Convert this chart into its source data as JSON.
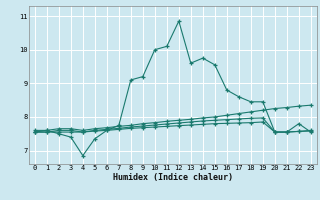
{
  "title": "",
  "xlabel": "Humidex (Indice chaleur)",
  "bg_color": "#cde8f0",
  "grid_color": "#ffffff",
  "line_color": "#1a7a6e",
  "xmin": -0.5,
  "xmax": 23.5,
  "ymin": 6.6,
  "ymax": 11.3,
  "yticks": [
    7,
    8,
    9,
    10,
    11
  ],
  "xticks": [
    0,
    1,
    2,
    3,
    4,
    5,
    6,
    7,
    8,
    9,
    10,
    11,
    12,
    13,
    14,
    15,
    16,
    17,
    18,
    19,
    20,
    21,
    22,
    23
  ],
  "line1_x": [
    0,
    1,
    2,
    3,
    4,
    5,
    6,
    7,
    8,
    9,
    10,
    11,
    12,
    13,
    14,
    15,
    16,
    17,
    18,
    19,
    20,
    21,
    22,
    23
  ],
  "line1_y": [
    7.6,
    7.6,
    7.5,
    7.4,
    6.85,
    7.35,
    7.6,
    7.75,
    9.1,
    9.2,
    10.0,
    10.1,
    10.85,
    9.6,
    9.75,
    9.55,
    8.8,
    8.6,
    8.45,
    8.45,
    7.55,
    7.55,
    7.8,
    7.55
  ],
  "line2_x": [
    0,
    1,
    2,
    3,
    4,
    5,
    6,
    7,
    8,
    9,
    10,
    11,
    12,
    13,
    14,
    15,
    16,
    17,
    18,
    19,
    20,
    21,
    22,
    23
  ],
  "line2_y": [
    7.55,
    7.6,
    7.65,
    7.65,
    7.6,
    7.65,
    7.68,
    7.72,
    7.75,
    7.8,
    7.83,
    7.87,
    7.9,
    7.93,
    7.97,
    8.0,
    8.05,
    8.1,
    8.15,
    8.2,
    8.25,
    8.28,
    8.32,
    8.35
  ],
  "line3_x": [
    0,
    1,
    2,
    3,
    4,
    5,
    6,
    7,
    8,
    9,
    10,
    11,
    12,
    13,
    14,
    15,
    16,
    17,
    18,
    19,
    20,
    21,
    22,
    23
  ],
  "line3_y": [
    7.55,
    7.55,
    7.6,
    7.6,
    7.55,
    7.6,
    7.63,
    7.66,
    7.7,
    7.73,
    7.76,
    7.79,
    7.82,
    7.85,
    7.88,
    7.9,
    7.92,
    7.94,
    7.96,
    7.97,
    7.55,
    7.55,
    7.57,
    7.6
  ],
  "line4_x": [
    0,
    1,
    2,
    3,
    4,
    5,
    6,
    7,
    8,
    9,
    10,
    11,
    12,
    13,
    14,
    15,
    16,
    17,
    18,
    19,
    20,
    21,
    22,
    23
  ],
  "line4_y": [
    7.55,
    7.55,
    7.55,
    7.55,
    7.55,
    7.58,
    7.6,
    7.63,
    7.66,
    7.68,
    7.7,
    7.72,
    7.74,
    7.76,
    7.78,
    7.8,
    7.81,
    7.82,
    7.83,
    7.85,
    7.55,
    7.55,
    7.57,
    7.58
  ]
}
